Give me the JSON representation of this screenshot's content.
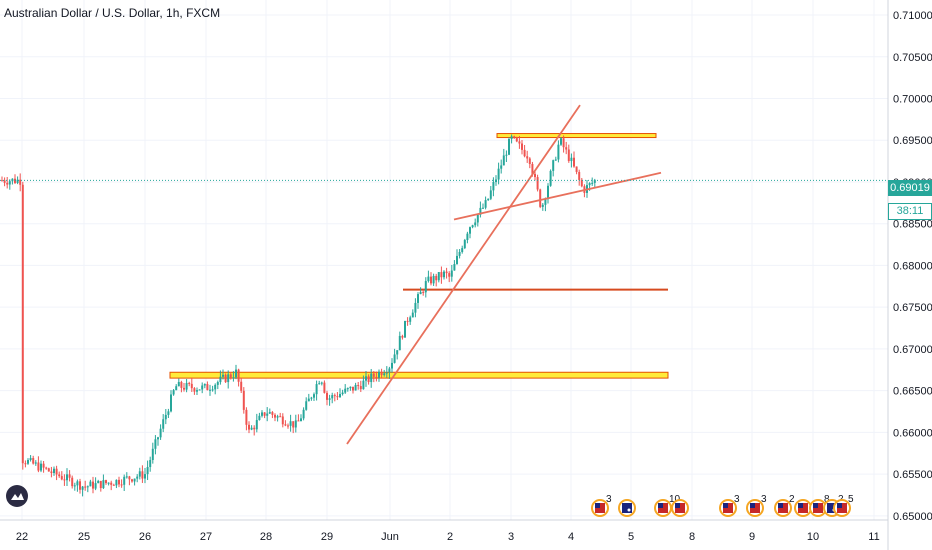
{
  "header": {
    "title": "Australian Dollar / U.S. Dollar, 1h, FXCM"
  },
  "price_axis": {
    "labels": [
      "0.71000",
      "0.70500",
      "0.70000",
      "0.69500",
      "0.69000",
      "0.68500",
      "0.68000",
      "0.67500",
      "0.67000",
      "0.66500",
      "0.66000",
      "0.65500",
      "0.65000"
    ],
    "current_price": "0.69019",
    "countdown": "38:11"
  },
  "time_axis": {
    "labels": [
      "22",
      "25",
      "26",
      "27",
      "28",
      "29",
      "Jun",
      "2",
      "3",
      "4",
      "5",
      "8",
      "9",
      "10",
      "11"
    ]
  },
  "events": [
    {
      "flag": "us",
      "count": "3"
    },
    {
      "flag": "au",
      "count": ""
    },
    {
      "flag": "us",
      "count": "10"
    },
    {
      "flag": "us",
      "count": ""
    },
    {
      "flag": "us",
      "count": "3"
    },
    {
      "flag": "us",
      "count": "3"
    },
    {
      "flag": "us",
      "count": "2"
    },
    {
      "flag": "us",
      "count": ""
    },
    {
      "flag": "us",
      "count": "8"
    },
    {
      "flag": "au",
      "count": "2"
    },
    {
      "flag": "us",
      "count": "5"
    }
  ],
  "colors": {
    "up": "#26a69a",
    "down": "#ef5350",
    "trend": "#e8705c",
    "resistance": "#d64a1f",
    "zone_fill": "#ffeb3b",
    "zone_border": "#e65100",
    "grid": "#f0f3fa",
    "current_price": "#26a69a"
  },
  "chart_data": {
    "type": "candlestick",
    "ylim": [
      0.6495,
      0.7118
    ],
    "x_ticks": [
      "22",
      "25",
      "26",
      "27",
      "28",
      "29",
      "Jun",
      "2",
      "3",
      "4",
      "5",
      "8",
      "9",
      "10",
      "11"
    ],
    "price_path": [
      [
        "22",
        0.6568
      ],
      [
        "25",
        0.6535
      ],
      [
        "25.5",
        0.6541
      ],
      [
        "26",
        0.655
      ],
      [
        "26.5",
        0.6655
      ],
      [
        "27",
        0.6653
      ],
      [
        "27.5",
        0.6672
      ],
      [
        "27.7",
        0.66
      ],
      [
        "28",
        0.6625
      ],
      [
        "28.5",
        0.6608
      ],
      [
        "28.9",
        0.6668
      ],
      [
        "29",
        0.664
      ],
      [
        "29.5",
        0.6655
      ],
      [
        "Jun",
        0.668
      ],
      [
        "Jun.3",
        0.6738
      ],
      [
        "Jun.6",
        0.678
      ],
      [
        "Jun.9",
        0.679
      ],
      [
        "2",
        0.6785
      ],
      [
        "2.3",
        0.6845
      ],
      [
        "2.6",
        0.6875
      ],
      [
        "3",
        0.6952
      ],
      [
        "3.3",
        0.693
      ],
      [
        "3.5",
        0.6868
      ],
      [
        "3.8",
        0.695
      ],
      [
        "4",
        0.6925
      ],
      [
        "4.2",
        0.689
      ],
      [
        "4.4",
        0.6902
      ]
    ],
    "annotations": {
      "horizontal_lines": [
        0.6771
      ],
      "zones": [
        [
          0.6665,
          0.6672
        ],
        [
          0.69535,
          0.6958
        ]
      ],
      "trendlines": 3
    }
  }
}
